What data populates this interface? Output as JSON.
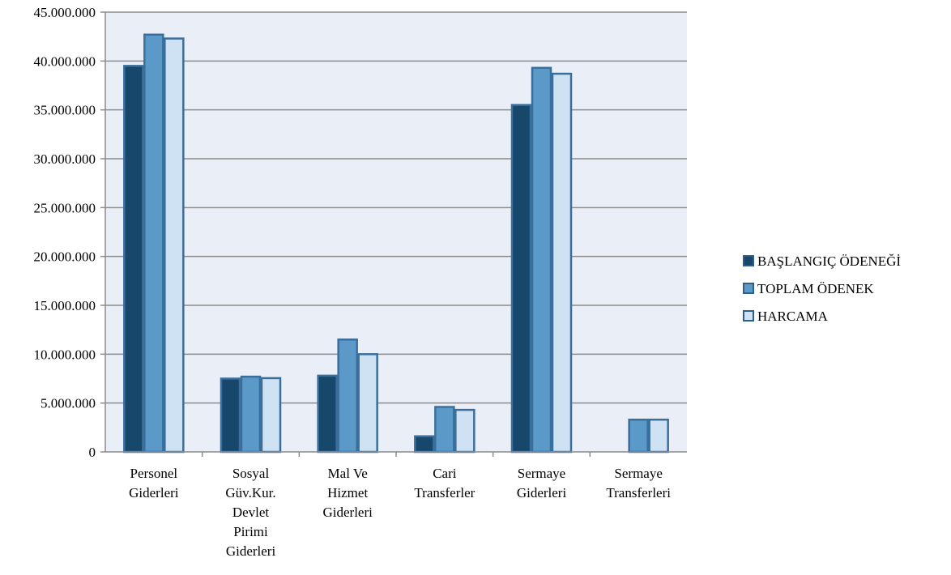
{
  "chart_data": {
    "type": "bar",
    "categories": [
      [
        "Personel",
        "Giderleri"
      ],
      [
        "Sosyal",
        "Güv.Kur.",
        "Devlet",
        "Pirimi",
        "Giderleri"
      ],
      [
        "Mal Ve",
        "Hizmet",
        "Giderleri"
      ],
      [
        "Cari",
        "Transferler"
      ],
      [
        "Sermaye",
        "Giderleri"
      ],
      [
        "Sermaye",
        "Transferleri"
      ]
    ],
    "series": [
      {
        "name": "BAŞLANGIÇ ÖDENEĞİ",
        "color": "#17476b",
        "values": [
          39500000,
          7500000,
          7800000,
          1600000,
          35500000,
          0
        ]
      },
      {
        "name": "TOPLAM ÖDENEK",
        "color": "#5b99c8",
        "values": [
          42700000,
          7700000,
          11500000,
          4600000,
          39300000,
          3300000
        ]
      },
      {
        "name": "HARCAMA",
        "color": "#cfe2f4",
        "values": [
          42300000,
          7550000,
          10000000,
          4300000,
          38700000,
          3300000
        ]
      }
    ],
    "yticks": [
      "0",
      "5.000.000",
      "10.000.000",
      "15.000.000",
      "20.000.000",
      "25.000.000",
      "30.000.000",
      "35.000.000",
      "40.000.000",
      "45.000.000"
    ],
    "ylim": [
      0,
      45000000
    ],
    "grid": true,
    "legend": "right",
    "xlabel": "",
    "ylabel": "",
    "title": ""
  }
}
